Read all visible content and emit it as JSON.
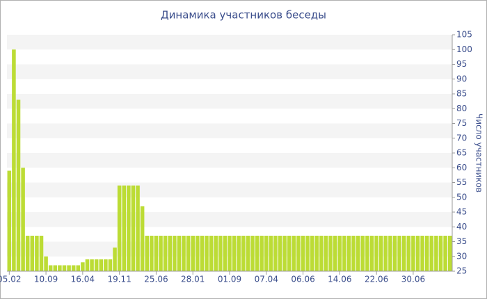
{
  "chart_data": {
    "type": "bar",
    "title": "Динамика участников беседы",
    "y_axis_label": "Число участников",
    "categories": [
      "05.02",
      null,
      null,
      null,
      null,
      null,
      null,
      null,
      "10.09",
      null,
      null,
      null,
      null,
      null,
      null,
      null,
      "16.04",
      null,
      null,
      null,
      null,
      null,
      null,
      null,
      "19.11",
      null,
      null,
      null,
      null,
      null,
      null,
      null,
      "25.06",
      null,
      null,
      null,
      null,
      null,
      null,
      null,
      "28.01",
      null,
      null,
      null,
      null,
      null,
      null,
      null,
      "01.09",
      null,
      null,
      null,
      null,
      null,
      null,
      null,
      "07.04",
      null,
      null,
      null,
      null,
      null,
      null,
      null,
      "06.06",
      null,
      null,
      null,
      null,
      null,
      null,
      null,
      "14.06",
      null,
      null,
      null,
      null,
      null,
      null,
      null,
      "22.06",
      null,
      null,
      null,
      null,
      null,
      null,
      null,
      "30.06",
      null,
      null,
      null,
      null,
      null,
      null,
      null,
      null
    ],
    "values": [
      59,
      100,
      83,
      60,
      37,
      37,
      37,
      37,
      30,
      27,
      27,
      27,
      27,
      27,
      27,
      27,
      28,
      29,
      29,
      29,
      29,
      29,
      29,
      33,
      54,
      54,
      54,
      54,
      54,
      47,
      37,
      37,
      37,
      37,
      37,
      37,
      37,
      37,
      37,
      37,
      37,
      37,
      37,
      37,
      37,
      37,
      37,
      37,
      37,
      37,
      37,
      37,
      37,
      37,
      37,
      37,
      37,
      37,
      37,
      37,
      37,
      37,
      37,
      37,
      37,
      37,
      37,
      37,
      37,
      37,
      37,
      37,
      37,
      37,
      37,
      37,
      37,
      37,
      37,
      37,
      37,
      37,
      37,
      37,
      37,
      37,
      37,
      37,
      37,
      37,
      37,
      37,
      37,
      37,
      37,
      37,
      37
    ],
    "color": "#bcdc35",
    "ylim": [
      25,
      105
    ],
    "yticks": [
      25,
      30,
      35,
      40,
      45,
      50,
      55,
      60,
      65,
      70,
      75,
      80,
      85,
      90,
      95,
      100,
      105
    ],
    "grid": true
  }
}
